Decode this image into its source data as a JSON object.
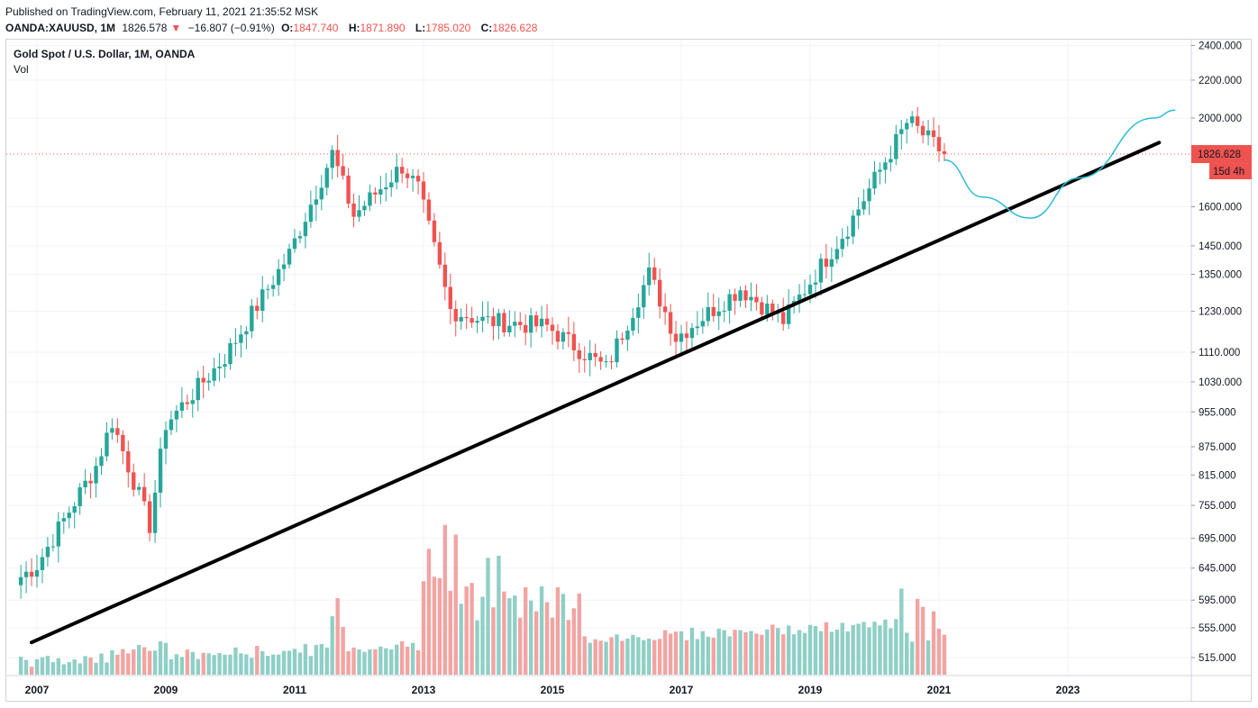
{
  "header": {
    "published": "Published on TradingView.com, February 11, 2021 21:35:52 MSK",
    "symbol": "OANDA:XAUUSD, 1M",
    "last": "1826.578",
    "arrow": "▼",
    "change": "−16.807 (−0.91%)",
    "o_label": "O:",
    "o_value": "1847.740",
    "h_label": "H:",
    "h_value": "1871.890",
    "l_label": "L:",
    "l_value": "1785.020",
    "c_label": "C:",
    "c_value": "1826.628"
  },
  "legend": {
    "title": "Gold Spot / U.S. Dollar, 1M, OANDA",
    "volume": "Vol"
  },
  "price_badge": {
    "price": "1826.628",
    "countdown": "15d 4h"
  },
  "colors": {
    "up": "#26a69a",
    "down": "#ef5350",
    "up_vol": "#8fcfc6",
    "down_vol": "#f2a4a2",
    "trendline": "#000000",
    "projection": "#2bbcd8"
  },
  "chart_data": {
    "type": "candlestick",
    "symbol": "XAUUSD",
    "interval": "1M",
    "y_scale": "log",
    "y_ticks": [
      2400,
      2200,
      2000,
      1826.628,
      1600,
      1450,
      1350,
      1230,
      1110,
      1030,
      955,
      875,
      815,
      755,
      695,
      645,
      595,
      555,
      515
    ],
    "y_tick_labels": [
      "2400.000",
      "2200.000",
      "2000.000",
      "1826.628",
      "1600.000",
      "1450.000",
      "1350.000",
      "1230.000",
      "1110.000",
      "1030.000",
      "955.000",
      "875.000",
      "815.000",
      "755.000",
      "695.000",
      "645.000",
      "595.000",
      "555.000",
      "515.000"
    ],
    "x_ticks": [
      "2007",
      "2009",
      "2011",
      "2013",
      "2015",
      "2017",
      "2019",
      "2021",
      "2023"
    ],
    "closes_yearly_anchors": {
      "2007-01": 650,
      "2007-12": 834,
      "2008-03": 933,
      "2008-10": 718,
      "2009-01": 927,
      "2009-12": 1096,
      "2010-12": 1421,
      "2011-08": 1829,
      "2011-12": 1565,
      "2012-09": 1772,
      "2012-12": 1675,
      "2013-06": 1234,
      "2013-12": 1202,
      "2014-12": 1184,
      "2015-11": 1065,
      "2016-07": 1351,
      "2016-12": 1152,
      "2017-12": 1303,
      "2018-08": 1201,
      "2019-08": 1520,
      "2020-07": 1975,
      "2020-08": 1968,
      "2021-01": 1847,
      "2021-02": 1826.628
    },
    "trendline": {
      "start": {
        "date": "2006-12",
        "price": 535
      },
      "end": {
        "date": "2024-06",
        "price": 1880
      }
    },
    "projection_path": [
      {
        "date": "2021-02",
        "price": 1800
      },
      {
        "date": "2021-09",
        "price": 1640
      },
      {
        "date": "2022-06",
        "price": 1555
      },
      {
        "date": "2023-03",
        "price": 1720
      },
      {
        "date": "2024-05",
        "price": 2000
      },
      {
        "date": "2024-09",
        "price": 2040
      }
    ],
    "volume_series": "relative heights approximated"
  }
}
